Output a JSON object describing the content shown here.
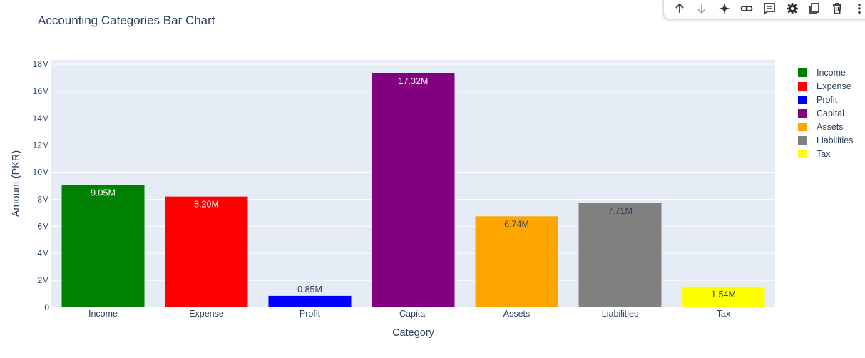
{
  "toolbar": {
    "icons": [
      "arrow-up-icon",
      "arrow-down-icon",
      "sparkle-icon",
      "link-icon",
      "comment-icon",
      "gear-icon",
      "copy-icon",
      "trash-icon",
      "more-vert-icon"
    ]
  },
  "chart_data": {
    "type": "bar",
    "title": "Accounting Categories Bar Chart",
    "xlabel": "Category",
    "ylabel": "Amount (PKR)",
    "categories": [
      "Income",
      "Expense",
      "Profit",
      "Capital",
      "Assets",
      "Liabilities",
      "Tax"
    ],
    "values": [
      9050000,
      8200000,
      850000,
      17320000,
      6740000,
      7710000,
      1540000
    ],
    "data_labels": [
      "9.05M",
      "8.20M",
      "0.85M",
      "17.32M",
      "6.74M",
      "7.71M",
      "1.54M"
    ],
    "colors": [
      "#008000",
      "#ff0000",
      "#0000ff",
      "#800080",
      "#ffa500",
      "#808080",
      "#ffff00"
    ],
    "label_colors": [
      "#ffffff",
      "#ffffff",
      "#2a3f5f",
      "#ffffff",
      "#2a3f5f",
      "#2a3f5f",
      "#2a3f5f"
    ],
    "label_inside": [
      true,
      true,
      false,
      true,
      true,
      true,
      true
    ],
    "ylim": [
      0,
      18000000
    ],
    "yticks": [
      0,
      2000000,
      4000000,
      6000000,
      8000000,
      10000000,
      12000000,
      14000000,
      16000000,
      18000000
    ],
    "ytick_labels": [
      "0",
      "2M",
      "4M",
      "6M",
      "8M",
      "10M",
      "12M",
      "14M",
      "16M",
      "18M"
    ],
    "grid": true,
    "legend": {
      "placement": "top-right",
      "entries": [
        "Income",
        "Expense",
        "Profit",
        "Capital",
        "Assets",
        "Liabilities",
        "Tax"
      ]
    },
    "plot_bg": "#e5ecf6"
  }
}
